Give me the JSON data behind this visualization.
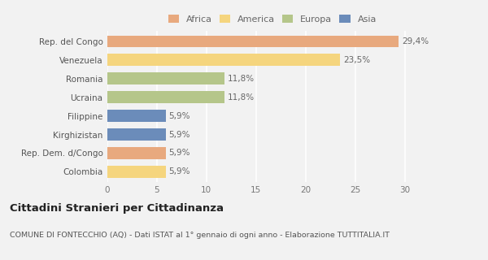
{
  "categories": [
    "Rep. del Congo",
    "Venezuela",
    "Romania",
    "Ucraina",
    "Filippine",
    "Kirghizistan",
    "Rep. Dem. d/Congo",
    "Colombia"
  ],
  "values": [
    29.4,
    23.5,
    11.8,
    11.8,
    5.9,
    5.9,
    5.9,
    5.9
  ],
  "labels": [
    "29,4%",
    "23,5%",
    "11,8%",
    "11,8%",
    "5,9%",
    "5,9%",
    "5,9%",
    "5,9%"
  ],
  "colors": [
    "#e8a97e",
    "#f5d57e",
    "#b5c68a",
    "#b5c68a",
    "#6b8cba",
    "#6b8cba",
    "#e8a97e",
    "#f5d57e"
  ],
  "legend": {
    "Africa": "#e8a97e",
    "America": "#f5d57e",
    "Europa": "#b5c68a",
    "Asia": "#6b8cba"
  },
  "xlim": [
    0,
    32
  ],
  "xticks": [
    0,
    5,
    10,
    15,
    20,
    25,
    30
  ],
  "title": "Cittadini Stranieri per Cittadinanza",
  "subtitle": "COMUNE DI FONTECCHIO (AQ) - Dati ISTAT al 1° gennaio di ogni anno - Elaborazione TUTTITALIA.IT",
  "background_color": "#f2f2f2",
  "bar_height": 0.65,
  "title_fontsize": 9.5,
  "subtitle_fontsize": 6.8,
  "label_fontsize": 7.5,
  "tick_fontsize": 7.5,
  "legend_fontsize": 8.0
}
